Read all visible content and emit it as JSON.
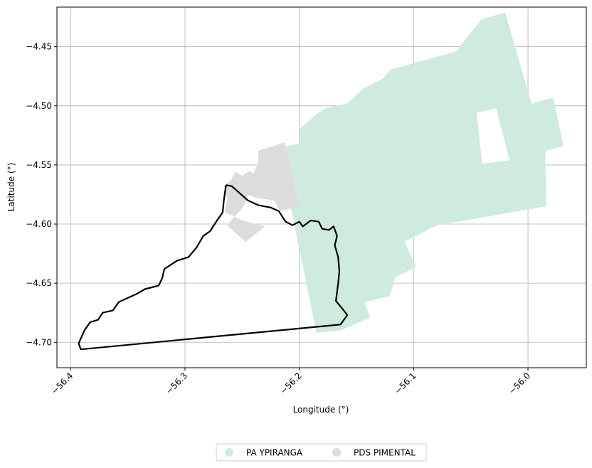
{
  "chart_data": {
    "type": "map",
    "xlabel": "Longitude (°)",
    "ylabel": "Latitude (°)",
    "xlim": [
      -56.412,
      -55.949
    ],
    "ylim": [
      -4.7215,
      -4.4165
    ],
    "grid": true,
    "legend_placement": "bottom-center",
    "x_ticks": [
      {
        "value": -56.4,
        "label": "−56.4"
      },
      {
        "value": -56.3,
        "label": "−56.3"
      },
      {
        "value": -56.2,
        "label": "−56.2"
      },
      {
        "value": -56.1,
        "label": "−56.1"
      },
      {
        "value": -56.0,
        "label": "−56.0"
      }
    ],
    "y_ticks": [
      {
        "value": -4.45,
        "label": "−4.45"
      },
      {
        "value": -4.5,
        "label": "−4.50"
      },
      {
        "value": -4.55,
        "label": "−4.55"
      },
      {
        "value": -4.6,
        "label": "−4.60"
      },
      {
        "value": -4.65,
        "label": "−4.65"
      },
      {
        "value": -4.7,
        "label": "−4.70"
      }
    ],
    "areas": [
      {
        "name": "PA YPIRANGA",
        "color": "#ceebdd",
        "rings": [
          [
            [
              -56.218,
              -4.535
            ],
            [
              -56.199,
              -4.532
            ],
            [
              -56.2,
              -4.52
            ],
            [
              -56.185,
              -4.507
            ],
            [
              -56.177,
              -4.502
            ],
            [
              -56.158,
              -4.498
            ],
            [
              -56.145,
              -4.486
            ],
            [
              -56.127,
              -4.477
            ],
            [
              -56.12,
              -4.469
            ],
            [
              -56.1,
              -4.464
            ],
            [
              -56.085,
              -4.46
            ],
            [
              -56.063,
              -4.454
            ],
            [
              -56.041,
              -4.427
            ],
            [
              -56.02,
              -4.421
            ],
            [
              -55.997,
              -4.498
            ],
            [
              -55.978,
              -4.493
            ],
            [
              -55.969,
              -4.534
            ],
            [
              -55.985,
              -4.538
            ],
            [
              -55.984,
              -4.585
            ],
            [
              -56.08,
              -4.601
            ],
            [
              -56.108,
              -4.615
            ],
            [
              -56.098,
              -4.636
            ],
            [
              -56.116,
              -4.645
            ],
            [
              -56.121,
              -4.661
            ],
            [
              -56.143,
              -4.666
            ],
            [
              -56.138,
              -4.679
            ],
            [
              -56.164,
              -4.69
            ],
            [
              -56.185,
              -4.692
            ]
          ],
          [
            [
              -56.045,
              -4.506
            ],
            [
              -56.028,
              -4.502
            ],
            [
              -56.016,
              -4.546
            ],
            [
              -56.04,
              -4.549
            ]
          ]
        ]
      },
      {
        "name": "PDS PIMENTAL",
        "color": "#dcdcdc",
        "rings": [
          [
            [
              -56.236,
              -4.538
            ],
            [
              -56.213,
              -4.531
            ],
            [
              -56.2,
              -4.585
            ],
            [
              -56.217,
              -4.589
            ],
            [
              -56.222,
              -4.58
            ],
            [
              -56.237,
              -4.578
            ],
            [
              -56.245,
              -4.575
            ],
            [
              -56.247,
              -4.582
            ],
            [
              -56.251,
              -4.588
            ],
            [
              -56.259,
              -4.596
            ],
            [
              -56.263,
              -4.601
            ],
            [
              -56.26,
              -4.604
            ],
            [
              -56.255,
              -4.608
            ],
            [
              -56.247,
              -4.615
            ],
            [
              -56.23,
              -4.602
            ],
            [
              -56.25,
              -4.597
            ],
            [
              -56.265,
              -4.59
            ],
            [
              -56.263,
              -4.579
            ],
            [
              -56.266,
              -4.567
            ],
            [
              -56.26,
              -4.563
            ],
            [
              -56.256,
              -4.556
            ],
            [
              -56.25,
              -4.559
            ],
            [
              -56.244,
              -4.555
            ],
            [
              -56.24,
              -4.557
            ],
            [
              -56.236,
              -4.548
            ]
          ]
        ]
      }
    ],
    "outline": {
      "color": "#000000",
      "points": [
        [
          -56.264,
          -4.567
        ],
        [
          -56.259,
          -4.568
        ],
        [
          -56.252,
          -4.574
        ],
        [
          -56.245,
          -4.58
        ],
        [
          -56.236,
          -4.584
        ],
        [
          -56.225,
          -4.586
        ],
        [
          -56.218,
          -4.589
        ],
        [
          -56.212,
          -4.598
        ],
        [
          -56.206,
          -4.601
        ],
        [
          -56.2,
          -4.598
        ],
        [
          -56.197,
          -4.602
        ],
        [
          -56.19,
          -4.597
        ],
        [
          -56.183,
          -4.598
        ],
        [
          -56.18,
          -4.604
        ],
        [
          -56.174,
          -4.605
        ],
        [
          -56.17,
          -4.602
        ],
        [
          -56.167,
          -4.61
        ],
        [
          -56.169,
          -4.618
        ],
        [
          -56.166,
          -4.628
        ],
        [
          -56.165,
          -4.64
        ],
        [
          -56.166,
          -4.65
        ],
        [
          -56.168,
          -4.665
        ],
        [
          -56.162,
          -4.672
        ],
        [
          -56.158,
          -4.677
        ],
        [
          -56.164,
          -4.685
        ],
        [
          -56.175,
          -4.686
        ],
        [
          -56.391,
          -4.706
        ],
        [
          -56.393,
          -4.701
        ],
        [
          -56.388,
          -4.69
        ],
        [
          -56.383,
          -4.683
        ],
        [
          -56.376,
          -4.681
        ],
        [
          -56.372,
          -4.675
        ],
        [
          -56.363,
          -4.673
        ],
        [
          -56.358,
          -4.666
        ],
        [
          -56.349,
          -4.662
        ],
        [
          -56.342,
          -4.659
        ],
        [
          -56.335,
          -4.655
        ],
        [
          -56.323,
          -4.652
        ],
        [
          -56.32,
          -4.646
        ],
        [
          -56.318,
          -4.638
        ],
        [
          -56.307,
          -4.631
        ],
        [
          -56.297,
          -4.628
        ],
        [
          -56.29,
          -4.62
        ],
        [
          -56.284,
          -4.61
        ],
        [
          -56.278,
          -4.606
        ],
        [
          -56.272,
          -4.597
        ],
        [
          -56.267,
          -4.59
        ],
        [
          -56.266,
          -4.58
        ],
        [
          -56.265,
          -4.573
        ],
        [
          -56.264,
          -4.567
        ]
      ]
    },
    "legend": [
      {
        "label": "PA YPIRANGA",
        "color": "#ceebdd"
      },
      {
        "label": "PDS PIMENTAL",
        "color": "#dcdcdc"
      }
    ]
  }
}
